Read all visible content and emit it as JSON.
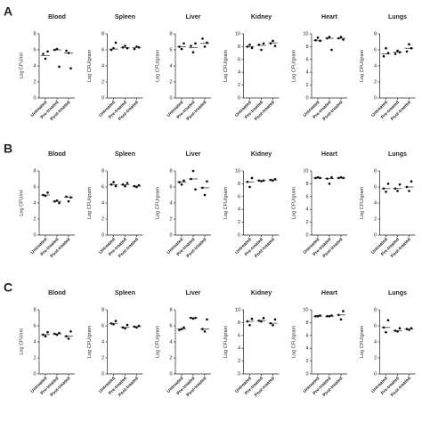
{
  "row_labels": [
    "A",
    "B",
    "C"
  ],
  "chart_data": [
    {
      "type": "dot",
      "title": "Blood",
      "y_label": "Log CFU/ml",
      "categories": [
        "Untreated",
        "Pre-treated",
        "Post-treated"
      ],
      "ylim": [
        0,
        8
      ],
      "yticks": [
        0,
        2,
        4,
        6,
        8
      ],
      "color": "#000000",
      "values": [
        [
          5.5,
          4.9,
          5.8
        ],
        [
          6.0,
          6.1,
          3.9
        ],
        [
          5.9,
          5.6,
          3.7
        ]
      ],
      "medians": [
        5.3,
        6.0,
        5.6
      ]
    },
    {
      "type": "dot",
      "title": "Spleen",
      "y_label": "Log CFU/gram",
      "categories": [
        "Untreated",
        "Pre-treated",
        "Post-treated"
      ],
      "ylim": [
        0,
        8
      ],
      "yticks": [
        0,
        2,
        4,
        6,
        8
      ],
      "color": "#000000",
      "values": [
        [
          6.0,
          6.2,
          6.9
        ],
        [
          6.3,
          6.5,
          6.2
        ],
        [
          6.1,
          6.4,
          6.3
        ]
      ],
      "medians": [
        6.1,
        6.3,
        6.3
      ]
    },
    {
      "type": "dot",
      "title": "Liver",
      "y_label": "Log CFU/gram",
      "categories": [
        "Untreated",
        "Pre-treated",
        "Post-treated"
      ],
      "ylim": [
        0,
        8
      ],
      "yticks": [
        0,
        2,
        4,
        6,
        8
      ],
      "color": "#000000",
      "values": [
        [
          6.4,
          6.1,
          6.8
        ],
        [
          6.5,
          5.7,
          6.8
        ],
        [
          7.4,
          6.4,
          6.9
        ]
      ],
      "medians": [
        6.4,
        6.3,
        6.8
      ]
    },
    {
      "type": "dot",
      "title": "Kidney",
      "y_label": "Log CFU/gram",
      "categories": [
        "Untreated",
        "Pre-treated",
        "Post-treated"
      ],
      "ylim": [
        0,
        10
      ],
      "yticks": [
        0,
        2,
        4,
        6,
        8,
        10
      ],
      "color": "#000000",
      "values": [
        [
          8.0,
          8.3,
          7.8
        ],
        [
          8.3,
          7.5,
          8.5
        ],
        [
          8.5,
          8.9,
          8.1
        ]
      ],
      "medians": [
        8.0,
        8.2,
        8.6
      ]
    },
    {
      "type": "dot",
      "title": "Heart",
      "y_label": "Log CFU/gram",
      "categories": [
        "Untreated",
        "Pre-treated",
        "Post-treated"
      ],
      "ylim": [
        0,
        10
      ],
      "yticks": [
        0,
        2,
        4,
        6,
        8,
        10
      ],
      "color": "#000000",
      "values": [
        [
          9.0,
          9.4,
          8.9
        ],
        [
          9.3,
          9.5,
          7.5
        ],
        [
          9.3,
          9.5,
          9.1
        ]
      ],
      "medians": [
        9.0,
        9.3,
        9.3
      ]
    },
    {
      "type": "dot",
      "title": "Lungs",
      "y_label": "Log CFU/gram",
      "categories": [
        "Untreated",
        "Pre-treated",
        "Post-treated"
      ],
      "ylim": [
        0,
        8
      ],
      "yticks": [
        0,
        2,
        4,
        6,
        8
      ],
      "color": "#000000",
      "values": [
        [
          5.2,
          6.2,
          5.6
        ],
        [
          5.5,
          5.9,
          5.7
        ],
        [
          5.8,
          6.7,
          6.2
        ]
      ],
      "medians": [
        5.5,
        5.7,
        6.2
      ]
    },
    {
      "type": "dot",
      "title": "Blood",
      "y_label": "Log CFU/ml",
      "categories": [
        "Untreated",
        "Pre-treated",
        "Post-treated"
      ],
      "ylim": [
        0,
        8
      ],
      "yticks": [
        0,
        2,
        4,
        6,
        8
      ],
      "color": "#000000",
      "values": [
        [
          5.0,
          4.9,
          5.3
        ],
        [
          4.2,
          4.3,
          4.0
        ],
        [
          4.8,
          4.2,
          4.7
        ]
      ],
      "medians": [
        5.0,
        4.2,
        4.7
      ]
    },
    {
      "type": "dot",
      "title": "Spleen",
      "y_label": "Log CFU/gram",
      "categories": [
        "Untreated",
        "Pre-treated",
        "Post-treated"
      ],
      "ylim": [
        0,
        8
      ],
      "yticks": [
        0,
        2,
        4,
        6,
        8
      ],
      "color": "#000000",
      "values": [
        [
          6.3,
          6.6,
          6.1
        ],
        [
          6.3,
          6.1,
          6.5
        ],
        [
          6.1,
          6.0,
          6.2
        ]
      ],
      "medians": [
        6.3,
        6.3,
        6.1
      ]
    },
    {
      "type": "dot",
      "title": "Liver",
      "y_label": "Log CFU/gram",
      "categories": [
        "Untreated",
        "Pre-treated",
        "Post-treated"
      ],
      "ylim": [
        0,
        8
      ],
      "yticks": [
        0,
        2,
        4,
        6,
        8
      ],
      "color": "#000000",
      "values": [
        [
          6.6,
          6.3,
          6.8
        ],
        [
          7.0,
          8.0,
          5.7
        ],
        [
          5.9,
          5.0,
          6.7
        ]
      ],
      "medians": [
        6.6,
        7.0,
        5.9
      ]
    },
    {
      "type": "dot",
      "title": "Kidney",
      "y_label": "Log CFU/gram",
      "categories": [
        "Untreated",
        "Pre-treated",
        "Post-treated"
      ],
      "ylim": [
        0,
        10
      ],
      "yticks": [
        0,
        2,
        4,
        6,
        8,
        10
      ],
      "color": "#000000",
      "values": [
        [
          8.3,
          7.5,
          8.9
        ],
        [
          8.5,
          8.4,
          8.5
        ],
        [
          8.6,
          8.5,
          8.7
        ]
      ],
      "medians": [
        8.3,
        8.5,
        8.6
      ]
    },
    {
      "type": "dot",
      "title": "Heart",
      "y_label": "Log CFU/gram",
      "categories": [
        "Untreated",
        "Pre-treated",
        "Post-treated"
      ],
      "ylim": [
        0,
        10
      ],
      "yticks": [
        0,
        2,
        4,
        6,
        8,
        10
      ],
      "color": "#000000",
      "values": [
        [
          8.9,
          9.0,
          8.9
        ],
        [
          8.8,
          8.0,
          9.0
        ],
        [
          8.9,
          9.0,
          8.9
        ]
      ],
      "medians": [
        8.9,
        8.8,
        8.9
      ]
    },
    {
      "type": "dot",
      "title": "Lungs",
      "y_label": "Log CFU/gram",
      "categories": [
        "Untreated",
        "Pre-treated",
        "Post-treated"
      ],
      "ylim": [
        0,
        8
      ],
      "yticks": [
        0,
        2,
        4,
        6,
        8
      ],
      "color": "#000000",
      "values": [
        [
          5.8,
          5.4,
          6.4
        ],
        [
          5.8,
          5.5,
          6.3
        ],
        [
          6.0,
          5.5,
          6.7
        ]
      ],
      "medians": [
        5.8,
        5.8,
        6.0
      ]
    },
    {
      "type": "dot",
      "title": "Blood",
      "y_label": "Log CFU/ml",
      "categories": [
        "Untreated",
        "Pre-treated",
        "Post-treated"
      ],
      "ylim": [
        0,
        8
      ],
      "yticks": [
        0,
        2,
        4,
        6,
        8
      ],
      "color": "#000000",
      "values": [
        [
          4.9,
          4.7,
          5.2
        ],
        [
          5.0,
          4.9,
          5.1
        ],
        [
          4.7,
          4.4,
          5.3
        ]
      ],
      "medians": [
        4.9,
        5.0,
        4.7
      ]
    },
    {
      "type": "dot",
      "title": "Spleen",
      "y_label": "Log CFU/gram",
      "categories": [
        "Untreated",
        "Pre-treated",
        "Post-treated"
      ],
      "ylim": [
        0,
        8
      ],
      "yticks": [
        0,
        2,
        4,
        6,
        8
      ],
      "color": "#000000",
      "values": [
        [
          6.3,
          6.2,
          6.6
        ],
        [
          5.8,
          5.7,
          6.1
        ],
        [
          5.9,
          5.8,
          6.0
        ]
      ],
      "medians": [
        6.3,
        5.8,
        5.9
      ]
    },
    {
      "type": "dot",
      "title": "Liver",
      "y_label": "Log CFU/gram",
      "categories": [
        "Untreated",
        "Pre-treated",
        "Post-treated"
      ],
      "ylim": [
        0,
        8
      ],
      "yticks": [
        0,
        2,
        4,
        6,
        8
      ],
      "color": "#000000",
      "values": [
        [
          5.5,
          5.6,
          5.8
        ],
        [
          7.0,
          6.9,
          7.0
        ],
        [
          5.6,
          5.3,
          6.8
        ]
      ],
      "medians": [
        5.6,
        7.0,
        5.6
      ]
    },
    {
      "type": "dot",
      "title": "Kidney",
      "y_label": "Log CFU/gram",
      "categories": [
        "Untreated",
        "Pre-treated",
        "Post-treated"
      ],
      "ylim": [
        0,
        10
      ],
      "yticks": [
        0,
        2,
        4,
        6,
        8,
        10
      ],
      "color": "#000000",
      "values": [
        [
          8.2,
          7.6,
          8.6
        ],
        [
          8.3,
          8.2,
          8.7
        ],
        [
          7.9,
          7.6,
          8.5
        ]
      ],
      "medians": [
        8.2,
        8.3,
        7.9
      ]
    },
    {
      "type": "dot",
      "title": "Heart",
      "y_label": "Log CFU/gram",
      "categories": [
        "Untreated",
        "Pre-treated",
        "Post-treated"
      ],
      "ylim": [
        0,
        10
      ],
      "yticks": [
        0,
        2,
        4,
        6,
        8,
        10
      ],
      "color": "#000000",
      "values": [
        [
          9.0,
          9.0,
          9.1
        ],
        [
          9.0,
          9.0,
          9.1
        ],
        [
          9.2,
          8.5,
          9.8
        ]
      ],
      "medians": [
        9.0,
        9.0,
        9.2
      ]
    },
    {
      "type": "dot",
      "title": "Lungs",
      "y_label": "Log CFU/gram",
      "categories": [
        "Untreated",
        "Pre-treated",
        "Post-treated"
      ],
      "ylim": [
        0,
        8
      ],
      "yticks": [
        0,
        2,
        4,
        6,
        8
      ],
      "color": "#000000",
      "values": [
        [
          5.8,
          5.2,
          6.7
        ],
        [
          5.4,
          5.3,
          5.7
        ],
        [
          5.6,
          5.5,
          5.7
        ]
      ],
      "medians": [
        5.8,
        5.4,
        5.6
      ]
    }
  ]
}
